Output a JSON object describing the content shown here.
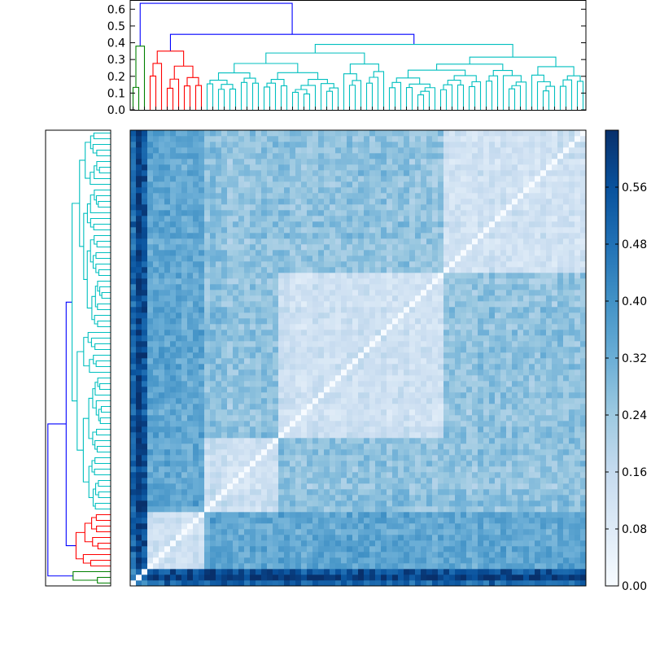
{
  "chart_data": {
    "type": "heatmap",
    "title": "",
    "n_leaves": 80,
    "colormap": "Blues",
    "colorbar": {
      "range": [
        0.0,
        0.64
      ],
      "ticks": [
        0.0,
        0.08,
        0.16,
        0.24,
        0.32,
        0.4,
        0.48,
        0.56
      ],
      "tick_labels": [
        "0.00",
        "0.08",
        "0.16",
        "0.24",
        "0.32",
        "0.40",
        "0.48",
        "0.56"
      ]
    },
    "top_dendrogram": {
      "ylim": [
        0.0,
        0.65
      ],
      "yticks": [
        0.0,
        0.1,
        0.2,
        0.3,
        0.4,
        0.5,
        0.6
      ],
      "ytick_labels": [
        "0.0",
        "0.1",
        "0.2",
        "0.3",
        "0.4",
        "0.5",
        "0.6"
      ],
      "clusters": [
        {
          "color": "#008000",
          "leaves": 3,
          "height": 0.38
        },
        {
          "color": "#ff0000",
          "leaves": 10,
          "height": 0.35
        },
        {
          "color": "#00bfbf",
          "leaves": 67,
          "height": 0.39
        }
      ],
      "merges": [
        {
          "color": "#0000ff",
          "height": 0.45,
          "join": "red+cyan"
        },
        {
          "color": "#0000ff",
          "height": 0.635,
          "join": "green+rest"
        }
      ]
    },
    "left_dendrogram": {
      "clusters": [
        {
          "color": "#008000",
          "leaves": 3
        },
        {
          "color": "#ff0000",
          "leaves": 10
        },
        {
          "color": "#00bfbf",
          "leaves": 67
        }
      ],
      "merges": [
        {
          "color": "#0000ff",
          "height": 0.45
        },
        {
          "color": "#0000ff",
          "height": 0.635
        }
      ]
    },
    "matrix_blocks": [
      {
        "name": "outlier-group",
        "range": [
          0,
          3
        ],
        "base": 0.5
      },
      {
        "name": "red-group",
        "range": [
          3,
          13
        ],
        "base": 0.12
      },
      {
        "name": "cyan-group-a",
        "range": [
          13,
          26
        ],
        "base": 0.1
      },
      {
        "name": "cyan-group-b",
        "range": [
          26,
          55
        ],
        "base": 0.12
      },
      {
        "name": "cyan-group-c",
        "range": [
          55,
          80
        ],
        "base": 0.14
      }
    ],
    "grid": false
  }
}
